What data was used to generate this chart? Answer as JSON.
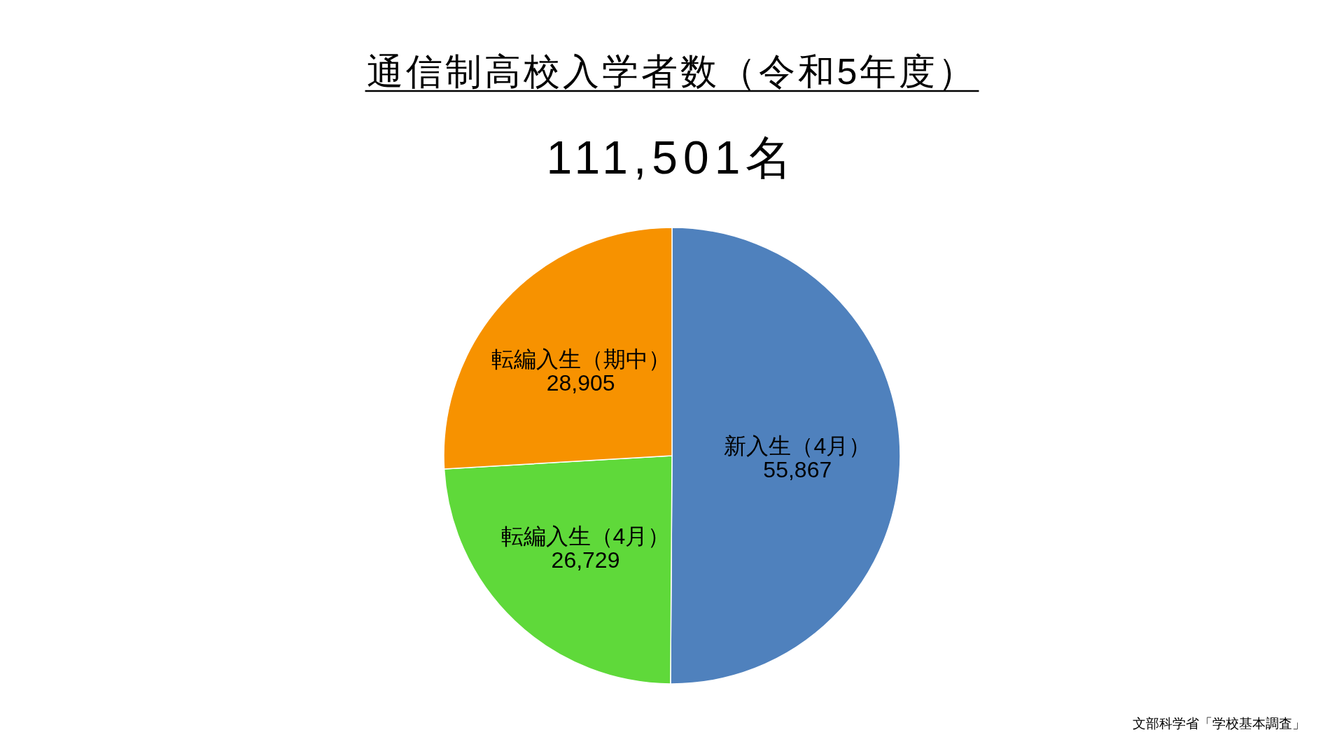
{
  "chart_data": {
    "type": "pie",
    "title": "通信制高校入学者数（令和5年度）",
    "subtitle": "111,501名",
    "categories": [
      "新入生（4月）",
      "転編入生（4月）",
      "転編入生（期中）"
    ],
    "values": [
      55867,
      26729,
      28905
    ],
    "colors": [
      "#4f81bd",
      "#5fd93a",
      "#f79200"
    ],
    "value_labels": [
      "55,867",
      "26,729",
      "28,905"
    ],
    "annotations": [
      "文部科学省「学校基本調査」"
    ]
  }
}
